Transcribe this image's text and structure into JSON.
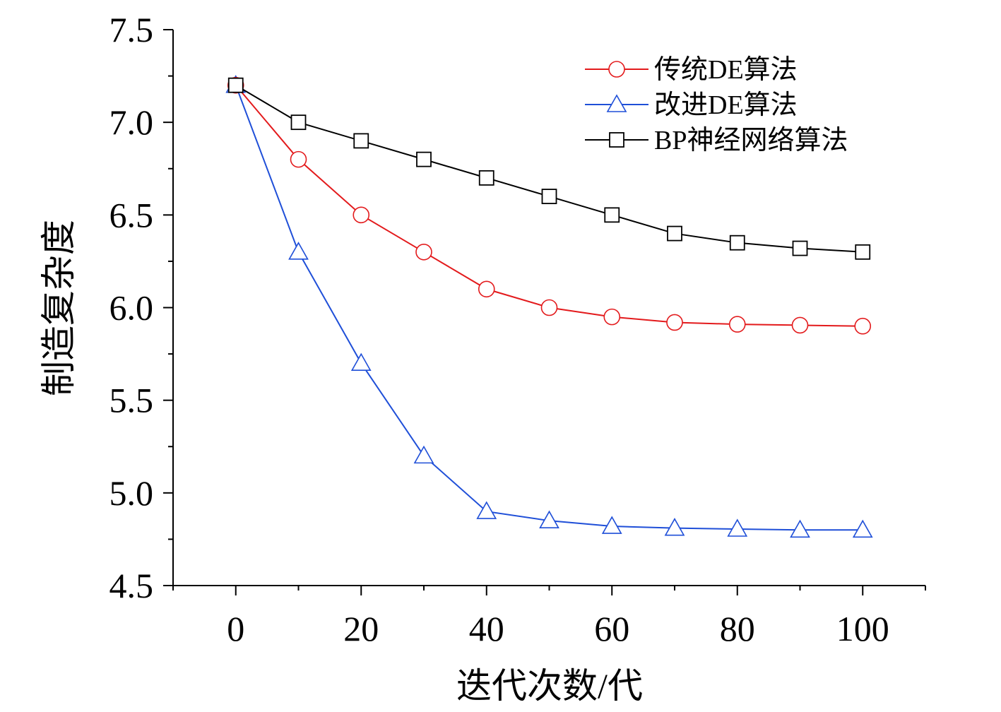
{
  "chart_data": {
    "type": "line",
    "title": "",
    "xlabel": "迭代次数/代",
    "ylabel": "制造复杂度",
    "x": [
      0,
      10,
      20,
      30,
      40,
      50,
      60,
      70,
      80,
      90,
      100
    ],
    "xlim": [
      -10,
      110
    ],
    "ylim": [
      4.5,
      7.5
    ],
    "xticks": [
      0,
      20,
      40,
      60,
      80,
      100
    ],
    "xtick_labels": [
      "0",
      "20",
      "40",
      "60",
      "80",
      "100"
    ],
    "yticks": [
      4.5,
      5.0,
      5.5,
      6.0,
      6.5,
      7.0,
      7.5
    ],
    "ytick_labels": [
      "4.5",
      "5.0",
      "5.5",
      "6.0",
      "6.5",
      "7.0",
      "7.5"
    ],
    "legend_position": "top-right",
    "grid": false,
    "series": [
      {
        "name": "传统DE算法",
        "color": "#e31a1c",
        "marker": "circle",
        "values": [
          7.2,
          6.8,
          6.5,
          6.3,
          6.1,
          6.0,
          5.95,
          5.92,
          5.91,
          5.905,
          5.9
        ]
      },
      {
        "name": "改进DE算法",
        "color": "#1f4fd8",
        "marker": "triangle",
        "values": [
          7.2,
          6.3,
          5.7,
          5.2,
          4.9,
          4.85,
          4.82,
          4.81,
          4.805,
          4.8,
          4.8
        ]
      },
      {
        "name": "BP神经网络算法",
        "color": "#000000",
        "marker": "square",
        "values": [
          7.2,
          7.0,
          6.9,
          6.8,
          6.7,
          6.6,
          6.5,
          6.4,
          6.35,
          6.32,
          6.3
        ]
      }
    ]
  }
}
